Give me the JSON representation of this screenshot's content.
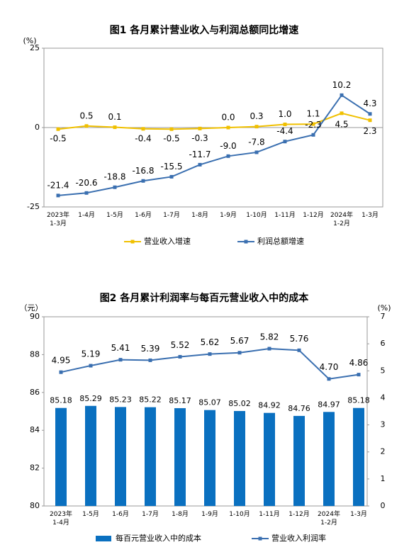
{
  "chart_data": [
    {
      "type": "line",
      "title": "图1 各月累计营业收入与利润总额同比增速",
      "y_unit": "(%)",
      "categories": [
        "2023年\n1-3月",
        "1-4月",
        "1-5月",
        "1-6月",
        "1-7月",
        "1-8月",
        "1-9月",
        "1-10月",
        "1-11月",
        "1-12月",
        "2024年\n1-2月",
        "1-3月"
      ],
      "ylim": [
        -25,
        25
      ],
      "yticks": [
        -25,
        0,
        25
      ],
      "series": [
        {
          "name": "营业收入增速",
          "color": "#f0c000",
          "values": [
            -0.5,
            0.5,
            0.1,
            -0.4,
            -0.5,
            -0.3,
            0.0,
            0.3,
            1.0,
            1.1,
            4.5,
            2.3
          ],
          "value_labels": [
            "-0.5",
            "0.5",
            "0.1",
            "-0.4",
            "-0.5",
            "-0.3",
            "0.0",
            "0.3",
            "1.0",
            "1.1",
            "4.5",
            "2.3"
          ]
        },
        {
          "name": "利润总额增速",
          "color": "#3a6fb0",
          "values": [
            -21.4,
            -20.6,
            -18.8,
            -16.8,
            -15.5,
            -11.7,
            -9.0,
            -7.8,
            -4.4,
            -2.3,
            10.2,
            4.3
          ],
          "value_labels": [
            "-21.4",
            "-20.6",
            "-18.8",
            "-16.8",
            "-15.5",
            "-11.7",
            "-9.0",
            "-7.8",
            "-4.4",
            "-2.3",
            "10.2",
            "4.3"
          ]
        }
      ]
    },
    {
      "type": "bar",
      "title": "图2 各月累计利润率与每百元营业收入中的成本",
      "y_unit": "（元）",
      "y2_unit": "(%)",
      "categories": [
        "2023年\n1-4月",
        "1-5月",
        "1-6月",
        "1-7月",
        "1-8月",
        "1-9月",
        "1-10月",
        "1-11月",
        "1-12月",
        "2024年\n1-2月",
        "1-3月"
      ],
      "ylim": [
        80,
        90
      ],
      "yticks": [
        80,
        82,
        84,
        86,
        88,
        90
      ],
      "y2lim": [
        0,
        7
      ],
      "y2ticks": [
        0,
        1,
        2,
        3,
        4,
        5,
        6,
        7
      ],
      "series": [
        {
          "name": "每百元营业收入中的成本",
          "color": "#0a70c0",
          "values": [
            85.18,
            85.29,
            85.23,
            85.22,
            85.17,
            85.07,
            85.02,
            84.92,
            84.76,
            84.97,
            85.18
          ]
        },
        {
          "name": "营业收入利润率",
          "color": "#3a6fb0",
          "type": "line",
          "axis": "y2",
          "values": [
            4.95,
            5.19,
            5.41,
            5.39,
            5.52,
            5.62,
            5.67,
            5.82,
            5.76,
            4.7,
            4.86
          ],
          "value_labels": [
            "4.95",
            "5.19",
            "5.41",
            "5.39",
            "5.52",
            "5.62",
            "5.67",
            "5.82",
            "5.76",
            "4.70",
            "4.86"
          ]
        }
      ]
    }
  ]
}
